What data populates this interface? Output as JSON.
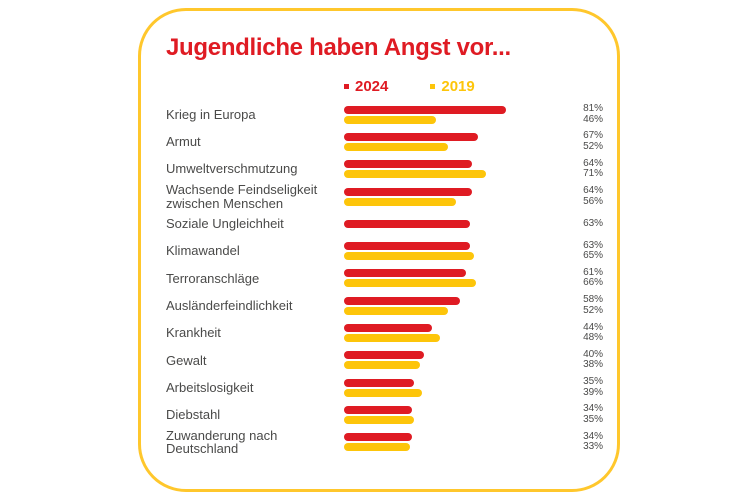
{
  "title": "Jugendliche haben Angst vor...",
  "colors": {
    "red": "#df1b23",
    "yellow": "#fdc50a",
    "border": "#ffc72c",
    "text": "#4a4a49"
  },
  "chart_data": {
    "type": "bar",
    "orientation": "horizontal",
    "title": "Jugendliche haben Angst vor...",
    "unit": "%",
    "xlim": [
      0,
      100
    ],
    "grid": false,
    "legend_position": "top",
    "categories": [
      "Krieg in Europa",
      "Armut",
      "Umweltverschmutzung",
      "Wachsende Feindseligkeit zwischen Menschen",
      "Soziale Ungleichheit",
      "Klimawandel",
      "Terroranschläge",
      "Ausländerfeindlichkeit",
      "Krankheit",
      "Gewalt",
      "Arbeitslosigkeit",
      "Diebstahl",
      "Zuwanderung nach Deutschland"
    ],
    "series": [
      {
        "name": "2024",
        "color": "#df1b23",
        "values": [
          81,
          67,
          64,
          64,
          63,
          63,
          61,
          58,
          44,
          40,
          35,
          34,
          34
        ]
      },
      {
        "name": "2019",
        "color": "#fdc50a",
        "values": [
          46,
          52,
          71,
          56,
          null,
          65,
          66,
          52,
          48,
          38,
          39,
          35,
          33
        ]
      }
    ]
  }
}
